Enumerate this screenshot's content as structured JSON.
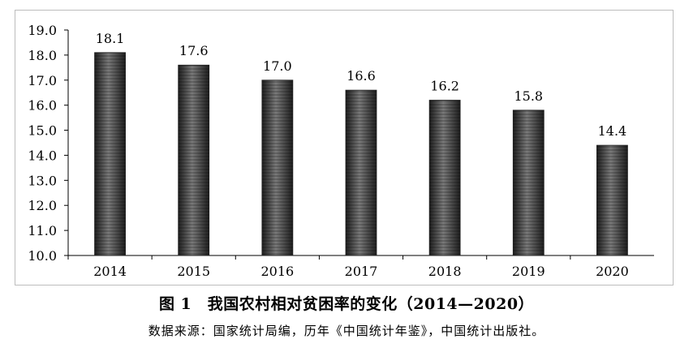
{
  "caption": "图 1　我国农村相对贫困率的变化（2014—2020）",
  "source": "数据来源：国家统计局编，历年《中国统计年鉴》，中国统计出版社。",
  "chart_data": {
    "type": "bar",
    "title": "",
    "xlabel": "",
    "ylabel": "",
    "categories": [
      "2014",
      "2015",
      "2016",
      "2017",
      "2018",
      "2019",
      "2020"
    ],
    "values": [
      18.1,
      17.6,
      17.0,
      16.6,
      16.2,
      15.8,
      14.4
    ],
    "data_labels": [
      "18.1",
      "17.6",
      "17.0",
      "16.6",
      "16.2",
      "15.8",
      "14.4"
    ],
    "ylim": [
      10.0,
      19.0
    ],
    "y_ticks": [
      "10.0",
      "11.0",
      "12.0",
      "13.0",
      "14.0",
      "15.0",
      "16.0",
      "17.0",
      "18.0",
      "19.0"
    ],
    "grid": false,
    "legend": "none",
    "bar_color": "#4a4a4a"
  }
}
